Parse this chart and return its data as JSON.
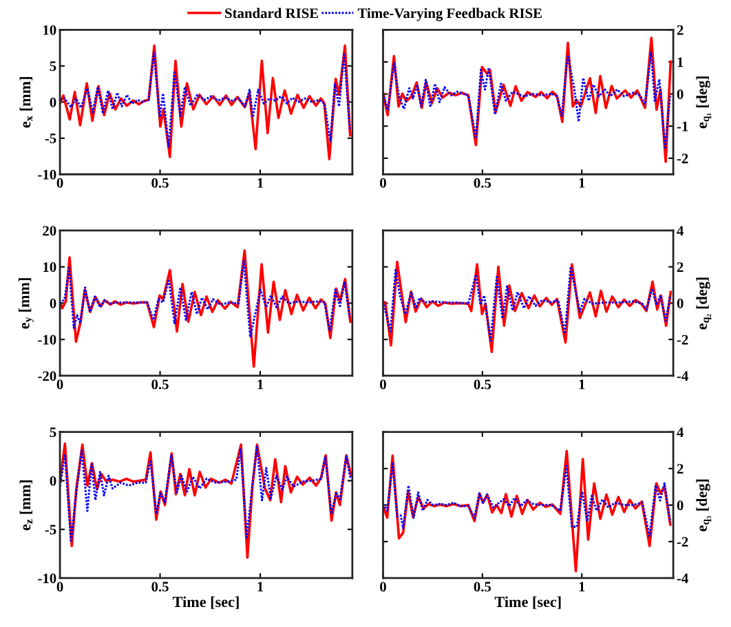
{
  "chart_data": [
    {
      "type": "line",
      "ylabel": "e$_{x}$ [mm]",
      "xlim": [
        0,
        1.46
      ],
      "xticks": [
        0,
        0.5,
        1
      ],
      "ylim": [
        -10,
        10
      ],
      "yticks": [
        -10,
        -5,
        0,
        5,
        10
      ],
      "grid": false,
      "legend": "top",
      "series": [
        {
          "name": "Standard RISE",
          "color": "#ff0000",
          "line_style": "solid",
          "x": [
            0,
            0.017,
            0.049,
            0.074,
            0.101,
            0.134,
            0.162,
            0.192,
            0.221,
            0.248,
            0.277,
            0.305,
            0.334,
            0.366,
            0.394,
            0.423,
            0.443,
            0.471,
            0.501,
            0.517,
            0.549,
            0.577,
            0.606,
            0.634,
            0.666,
            0.697,
            0.731,
            0.766,
            0.798,
            0.829,
            0.857,
            0.886,
            0.923,
            0.946,
            0.977,
            1.008,
            1.037,
            1.063,
            1.091,
            1.122,
            1.154,
            1.186,
            1.217,
            1.246,
            1.278,
            1.303,
            1.32,
            1.345,
            1.377,
            1.394,
            1.423,
            1.449
          ],
          "values": [
            -0.2,
            0.9,
            -2.4,
            1.4,
            -3.2,
            2.6,
            -2.6,
            2.2,
            -1.8,
            1.2,
            -1.0,
            0.5,
            -0.5,
            0.2,
            -0.3,
            0.2,
            0.3,
            7.8,
            -3.4,
            -1.0,
            -7.6,
            5.7,
            -3.4,
            2.6,
            -1.0,
            1.0,
            -0.3,
            0.8,
            -0.4,
            0.9,
            -0.4,
            0.7,
            -0.7,
            1.2,
            -6.5,
            5.7,
            -4.3,
            3.3,
            -2.2,
            1.6,
            -1.6,
            1.0,
            -0.8,
            0.8,
            -0.5,
            0.5,
            -0.2,
            -7.9,
            3.2,
            1.0,
            7.8,
            -4.6
          ]
        },
        {
          "name": "Time-Varying Feedback RISE",
          "color": "#0000ff",
          "line_style": "dotted",
          "x": [
            0,
            0.023,
            0.055,
            0.08,
            0.105,
            0.137,
            0.164,
            0.189,
            0.215,
            0.24,
            0.263,
            0.286,
            0.309,
            0.334,
            0.36,
            0.389,
            0.412,
            0.443,
            0.469,
            0.498,
            0.515,
            0.543,
            0.572,
            0.601,
            0.624,
            0.652,
            0.686,
            0.721,
            0.755,
            0.789,
            0.824,
            0.858,
            0.892,
            0.924,
            0.947,
            0.963,
            0.99,
            1.018,
            1.047,
            1.075,
            1.104,
            1.133,
            1.161,
            1.19,
            1.224,
            1.259,
            1.293,
            1.321,
            1.35,
            1.373,
            1.394,
            1.419,
            1.447
          ],
          "values": [
            0.3,
            0.5,
            -0.7,
            0.5,
            -0.8,
            1.9,
            -1.4,
            2.1,
            -1.6,
            1.6,
            -1.0,
            1.3,
            -0.6,
            1.0,
            -0.2,
            0.3,
            0,
            0.3,
            6.8,
            -2.1,
            1.2,
            -6.3,
            4.3,
            -1.9,
            2.1,
            -0.5,
            1.0,
            0.3,
            0.8,
            0.2,
            0.6,
            0.2,
            0.5,
            -0.6,
            1.7,
            -2.1,
            1.7,
            -0.2,
            0.5,
            0.2,
            0.8,
            -0.2,
            0.6,
            0,
            0.5,
            0,
            0.3,
            -0.2,
            -5.4,
            2.5,
            -0.6,
            6.8,
            -3.7
          ]
        }
      ]
    },
    {
      "type": "line",
      "ylabel": "e$_{q₁}$ [deg]",
      "xlim": [
        0,
        1.46
      ],
      "xticks": [
        0,
        0.5,
        1
      ],
      "ylim": [
        -2.5,
        2
      ],
      "yticks": [
        -2,
        -1,
        0,
        1,
        2
      ],
      "grid": false,
      "series": [
        {
          "color": "#ff0000",
          "line_style": "solid",
          "x": [
            0,
            0.023,
            0.055,
            0.078,
            0.097,
            0.117,
            0.143,
            0.169,
            0.195,
            0.217,
            0.246,
            0.272,
            0.3,
            0.332,
            0.366,
            0.395,
            0.429,
            0.467,
            0.498,
            0.524,
            0.538,
            0.566,
            0.606,
            0.641,
            0.667,
            0.696,
            0.727,
            0.767,
            0.795,
            0.826,
            0.852,
            0.875,
            0.902,
            0.93,
            0.955,
            0.973,
            0.995,
            1.041,
            1.07,
            1.093,
            1.121,
            1.15,
            1.176,
            1.218,
            1.247,
            1.279,
            1.318,
            1.35,
            1.376,
            1.396,
            1.422,
            1.447
          ],
          "values": [
            0.04,
            -0.66,
            1.18,
            -0.39,
            0.01,
            -0.23,
            -0.07,
            0.36,
            -0.43,
            0.37,
            -0.29,
            0.18,
            -0.11,
            0.04,
            -0.04,
            0.04,
            -0.04,
            -1.59,
            0.84,
            0.63,
            0.75,
            -0.57,
            0.29,
            -0.37,
            0.24,
            -0.21,
            0.06,
            -0.09,
            0.06,
            -0.13,
            0.07,
            -0.06,
            -0.87,
            1.59,
            -0.39,
            -0.18,
            -0.39,
            0.49,
            -0.59,
            0.56,
            -0.43,
            0.25,
            -0.14,
            0.11,
            -0.11,
            0.11,
            -0.43,
            1.75,
            -0.49,
            0.14,
            -2.11,
            1.01
          ]
        },
        {
          "color": "#0000ff",
          "line_style": "dotted",
          "x": [
            0,
            0.025,
            0.055,
            0.08,
            0.105,
            0.132,
            0.151,
            0.172,
            0.192,
            0.215,
            0.238,
            0.261,
            0.284,
            0.309,
            0.343,
            0.372,
            0.429,
            0.467,
            0.492,
            0.513,
            0.532,
            0.563,
            0.593,
            0.618,
            0.652,
            0.709,
            0.755,
            0.801,
            0.847,
            0.875,
            0.899,
            0.929,
            0.961,
            0.984,
            1.007,
            1.035,
            1.058,
            1.087,
            1.116,
            1.144,
            1.178,
            1.213,
            1.259,
            1.293,
            1.318,
            1.348,
            1.367,
            1.39,
            1.419,
            1.444
          ],
          "values": [
            0,
            -0.5,
            0.96,
            -0.07,
            -0.46,
            0.18,
            -0.14,
            0.29,
            -0.39,
            0.44,
            -0.41,
            0.32,
            -0.25,
            0.21,
            -0.04,
            0.07,
            -0.04,
            -1.39,
            0.75,
            0.14,
            0.82,
            -0.64,
            0.32,
            -0.21,
            0.07,
            -0.07,
            0,
            -0.04,
            0.01,
            -0.07,
            -0.68,
            1.21,
            0.21,
            -0.86,
            0.5,
            -0.21,
            0.29,
            -0.07,
            0.14,
            -0.07,
            0.14,
            -0.07,
            0.04,
            -0.04,
            -0.32,
            1.29,
            -0.21,
            0.46,
            -1.71,
            -0.04
          ]
        }
      ]
    },
    {
      "type": "line",
      "ylabel": "e$_{y}$ [mm]",
      "xlim": [
        0,
        1.46
      ],
      "xticks": [
        0,
        0.5,
        1
      ],
      "ylim": [
        -20,
        20
      ],
      "yticks": [
        -20,
        -10,
        0,
        10,
        20
      ],
      "grid": false,
      "series": [
        {
          "color": "#ff0000",
          "line_style": "solid",
          "x": [
            0,
            0.011,
            0.029,
            0.048,
            0.08,
            0.103,
            0.124,
            0.151,
            0.177,
            0.204,
            0.223,
            0.252,
            0.275,
            0.303,
            0.332,
            0.366,
            0.4,
            0.435,
            0.469,
            0.498,
            0.515,
            0.549,
            0.584,
            0.612,
            0.641,
            0.673,
            0.704,
            0.732,
            0.761,
            0.789,
            0.824,
            0.852,
            0.887,
            0.922,
            0.968,
            1.007,
            1.039,
            1.067,
            1.098,
            1.125,
            1.156,
            1.184,
            1.215,
            1.245,
            1.276,
            1.304,
            1.325,
            1.35,
            1.379,
            1.398,
            1.424,
            1.45
          ],
          "values": [
            0.2,
            -1.4,
            0.5,
            12.6,
            -10.6,
            -5.2,
            3.7,
            -2.4,
            1.7,
            -0.9,
            0.8,
            -0.4,
            0.5,
            -0.4,
            0.2,
            -0.1,
            0.2,
            0.2,
            -6.6,
            2.1,
            1.1,
            9.1,
            -7.8,
            5.3,
            -5.1,
            3.1,
            -3.3,
            1.8,
            -2.4,
            0.8,
            -1.5,
            0.4,
            -1.1,
            14.5,
            -17.5,
            10.7,
            -8.1,
            5.9,
            -4.6,
            3.6,
            -3.0,
            2.3,
            -2.0,
            1.5,
            -1.4,
            1.0,
            -0.1,
            -9.6,
            4.0,
            0.5,
            6.6,
            -5.1
          ]
        },
        {
          "color": "#0000ff",
          "line_style": "dotted",
          "x": [
            0,
            0.023,
            0.046,
            0.069,
            0.086,
            0.101,
            0.126,
            0.149,
            0.174,
            0.2,
            0.223,
            0.252,
            0.286,
            0.343,
            0.435,
            0.467,
            0.492,
            0.515,
            0.543,
            0.572,
            0.601,
            0.629,
            0.658,
            0.684,
            0.709,
            0.738,
            0.764,
            0.801,
            0.847,
            0.892,
            0.918,
            0.95,
            1.001,
            1.03,
            1.053,
            1.081,
            1.11,
            1.144,
            1.19,
            1.236,
            1.293,
            1.321,
            1.347,
            1.375,
            1.398,
            1.421,
            1.447
          ],
          "values": [
            -0.1,
            1.1,
            9.7,
            -6.8,
            -3.3,
            -5.5,
            4.3,
            -2.4,
            1.8,
            -1.1,
            0.8,
            -0.1,
            0.2,
            0.2,
            0.2,
            -4.6,
            1.1,
            0.2,
            6.6,
            -5.5,
            4.3,
            -4.6,
            3.1,
            -3.0,
            1.5,
            -1.7,
            1.1,
            -0.4,
            0.2,
            -0.1,
            11.7,
            -9.4,
            3.7,
            -1.1,
            2.1,
            -1.1,
            1.8,
            -0.1,
            0.5,
            0.2,
            0.5,
            0.2,
            -7.5,
            3.7,
            -0.8,
            5.9,
            -3.9
          ]
        }
      ]
    },
    {
      "type": "line",
      "ylabel": "e$_{q₂}$ [deg]",
      "xlim": [
        0,
        1.46
      ],
      "xticks": [
        0,
        0.5,
        1
      ],
      "ylim": [
        -4,
        4
      ],
      "yticks": [
        -4,
        -2,
        0,
        2,
        4
      ],
      "grid": false,
      "series": [
        {
          "color": "#ff0000",
          "line_style": "solid",
          "x": [
            0,
            0.011,
            0.04,
            0.071,
            0.114,
            0.141,
            0.164,
            0.192,
            0.22,
            0.249,
            0.277,
            0.309,
            0.343,
            0.389,
            0.429,
            0.444,
            0.473,
            0.498,
            0.515,
            0.547,
            0.58,
            0.609,
            0.635,
            0.664,
            0.698,
            0.732,
            0.761,
            0.789,
            0.821,
            0.849,
            0.875,
            0.918,
            0.95,
            0.99,
            1.041,
            1.07,
            1.096,
            1.124,
            1.153,
            1.184,
            1.213,
            1.241,
            1.27,
            1.299,
            1.325,
            1.356,
            1.379,
            1.398,
            1.424,
            1.447
          ],
          "values": [
            0.04,
            0.04,
            -2.32,
            2.27,
            -1.04,
            0.64,
            -0.47,
            0.25,
            -0.22,
            0.1,
            -0.15,
            0.04,
            -0.03,
            0,
            -0.03,
            -0.43,
            2.14,
            -0.6,
            -0.03,
            -2.68,
            2.01,
            -1.24,
            0.97,
            -0.43,
            0.55,
            -0.28,
            0.42,
            -0.18,
            0.29,
            -0.09,
            0.23,
            -2.17,
            2.14,
            -0.82,
            0.59,
            -0.73,
            0.68,
            -0.47,
            0.36,
            -0.22,
            0.19,
            -0.15,
            0.17,
            -0.03,
            -0.43,
            1.18,
            -0.34,
            0.42,
            -1.24,
            0.61
          ]
        },
        {
          "color": "#0000ff",
          "line_style": "dotted",
          "x": [
            0,
            0.037,
            0.063,
            0.086,
            0.112,
            0.143,
            0.166,
            0.183,
            0.212,
            0.252,
            0.309,
            0.366,
            0.429,
            0.467,
            0.49,
            0.509,
            0.541,
            0.572,
            0.601,
            0.624,
            0.652,
            0.677,
            0.709,
            0.735,
            0.767,
            0.801,
            0.847,
            0.881,
            0.915,
            0.944,
            0.99,
            1.013,
            1.053,
            1.121,
            1.19,
            1.259,
            1.304,
            1.325,
            1.354,
            1.375,
            1.396,
            1.422,
            1.444
          ],
          "values": [
            0.1,
            -1.55,
            1.82,
            0.36,
            -0.6,
            0.61,
            -0.28,
            0.29,
            0.04,
            0.1,
            0.04,
            0.04,
            -0.03,
            1.57,
            -0.09,
            0.42,
            -2.06,
            1.44,
            -0.85,
            0.93,
            -0.41,
            0.61,
            -0.28,
            0.38,
            -0.15,
            0.17,
            0.04,
            0.17,
            -1.68,
            2.01,
            -0.47,
            0.23,
            -0.03,
            0.04,
            0.04,
            0.1,
            -0.03,
            -0.34,
            0.8,
            -0.09,
            0.42,
            -0.98,
            0.36
          ]
        }
      ]
    },
    {
      "type": "line",
      "ylabel": "e$_{z}$ [mm]",
      "xlabel": "Time [sec]",
      "xlim": [
        0,
        1.46
      ],
      "xticks": [
        0,
        0.5,
        1
      ],
      "ylim": [
        -10,
        5
      ],
      "yticks": [
        -10,
        -5,
        0,
        5
      ],
      "grid": false,
      "series": [
        {
          "color": "#ff0000",
          "line_style": "solid",
          "x": [
            0,
            0.025,
            0.059,
            0.082,
            0.112,
            0.137,
            0.16,
            0.185,
            0.206,
            0.229,
            0.263,
            0.297,
            0.332,
            0.366,
            0.429,
            0.452,
            0.481,
            0.503,
            0.524,
            0.558,
            0.579,
            0.601,
            0.624,
            0.646,
            0.673,
            0.698,
            0.727,
            0.755,
            0.795,
            0.826,
            0.856,
            0.904,
            0.936,
            0.961,
            0.984,
            1.024,
            1.05,
            1.075,
            1.104,
            1.125,
            1.153,
            1.184,
            1.213,
            1.247,
            1.279,
            1.304,
            1.327,
            1.356,
            1.379,
            1.398,
            1.43,
            1.453
          ],
          "values": [
            -0.1,
            3.8,
            -6.7,
            -0.8,
            3.7,
            -0.5,
            1.8,
            -0.9,
            0.7,
            0,
            0.1,
            -0.1,
            0.2,
            -0.1,
            0.1,
            2.9,
            -4.0,
            -1.1,
            -2.5,
            2.8,
            -1.4,
            0.7,
            -1.5,
            1.2,
            -1.5,
            0.9,
            -0.7,
            0.2,
            -0.2,
            0.1,
            -0.3,
            3.7,
            -7.9,
            -0.6,
            3.7,
            -0.8,
            -2.0,
            2.2,
            -2.2,
            1.5,
            -1.2,
            0.4,
            -0.4,
            0.3,
            -0.5,
            0.3,
            2.6,
            -4.1,
            -1.2,
            -2.5,
            2.6,
            0.6
          ]
        },
        {
          "color": "#0000ff",
          "line_style": "dotted",
          "x": [
            0,
            0.025,
            0.055,
            0.08,
            0.109,
            0.137,
            0.158,
            0.177,
            0.2,
            0.22,
            0.243,
            0.263,
            0.303,
            0.343,
            0.389,
            0.429,
            0.452,
            0.481,
            0.501,
            0.524,
            0.556,
            0.584,
            0.606,
            0.635,
            0.664,
            0.698,
            0.732,
            0.778,
            0.835,
            0.881,
            0.902,
            0.933,
            0.961,
            0.984,
            1.009,
            1.03,
            1.053,
            1.081,
            1.11,
            1.133,
            1.167,
            1.213,
            1.259,
            1.304,
            1.325,
            1.356,
            1.379,
            1.398,
            1.43,
            1.451
          ],
          "values": [
            -0.6,
            2.7,
            -6.3,
            -1.5,
            3.1,
            -3.1,
            1.7,
            -2.0,
            0.9,
            -1.5,
            0.5,
            -0.8,
            -0.2,
            -0.5,
            -0.2,
            -0.2,
            2.1,
            -3.4,
            -1.3,
            -2.2,
            2.6,
            -1.2,
            0.5,
            -1.1,
            0.4,
            -0.8,
            0.2,
            -0.2,
            -0.1,
            0.1,
            3.3,
            -5.8,
            -0.4,
            3.5,
            -2.0,
            1.3,
            -1.8,
            0.5,
            -0.9,
            0.4,
            -0.6,
            -0.1,
            0,
            0.2,
            2.4,
            -3.4,
            -1.3,
            -1.9,
            2.5,
            0.2
          ]
        }
      ]
    },
    {
      "type": "line",
      "ylabel": "e$_{q₃}$ [deg]",
      "xlabel": "Time [sec]",
      "xlim": [
        0,
        1.46
      ],
      "xticks": [
        0,
        0.5,
        1
      ],
      "ylim": [
        -4,
        4
      ],
      "yticks": [
        -4,
        -2,
        0,
        2,
        4
      ],
      "grid": false,
      "series": [
        {
          "color": "#ff0000",
          "line_style": "solid",
          "x": [
            0,
            0.021,
            0.048,
            0.08,
            0.101,
            0.126,
            0.151,
            0.177,
            0.204,
            0.229,
            0.257,
            0.286,
            0.32,
            0.355,
            0.389,
            0.429,
            0.46,
            0.486,
            0.503,
            0.524,
            0.549,
            0.572,
            0.595,
            0.618,
            0.646,
            0.673,
            0.7,
            0.727,
            0.755,
            0.789,
            0.818,
            0.852,
            0.892,
            0.924,
            0.97,
            1.005,
            1.032,
            1.062,
            1.093,
            1.124,
            1.153,
            1.184,
            1.213,
            1.241,
            1.27,
            1.302,
            1.341,
            1.375,
            1.396,
            1.416,
            1.445
          ],
          "values": [
            -0.06,
            -0.69,
            2.7,
            -1.82,
            -1.51,
            0.75,
            -0.65,
            0.44,
            -0.19,
            0.06,
            -0.06,
            0.03,
            -0.06,
            0.06,
            -0.06,
            0,
            -0.88,
            0.63,
            0.13,
            0.57,
            -0.4,
            0,
            -0.44,
            0.6,
            -0.63,
            0.5,
            -0.48,
            0.28,
            -0.25,
            0.13,
            -0.1,
            0.03,
            -0.48,
            2.96,
            -3.62,
            2.52,
            -1.89,
            1.19,
            -0.75,
            0.57,
            -0.53,
            0.44,
            -0.38,
            0.28,
            -0.19,
            0.19,
            -2.24,
            1.19,
            0.63,
            1.03,
            -1.07
          ]
        },
        {
          "color": "#0000ff",
          "line_style": "dotted",
          "x": [
            0,
            0.021,
            0.048,
            0.071,
            0.089,
            0.101,
            0.128,
            0.154,
            0.177,
            0.2,
            0.223,
            0.252,
            0.286,
            0.32,
            0.355,
            0.389,
            0.429,
            0.46,
            0.484,
            0.503,
            0.524,
            0.555,
            0.584,
            0.606,
            0.635,
            0.661,
            0.692,
            0.721,
            0.755,
            0.801,
            0.847,
            0.892,
            0.922,
            0.95,
            0.975,
            1.001,
            1.027,
            1.05,
            1.075,
            1.104,
            1.133,
            1.167,
            1.213,
            1.259,
            1.304,
            1.341,
            1.371,
            1.394,
            1.416,
            1.445
          ],
          "values": [
            0.06,
            -0.31,
            2.26,
            -0.63,
            -0.57,
            -1.26,
            1.07,
            -0.69,
            0.69,
            -0.31,
            0.28,
            0,
            0.06,
            0,
            0.13,
            -0.06,
            -0.06,
            -0.69,
            0.63,
            0.13,
            0.57,
            -0.13,
            0.13,
            0.31,
            -0.06,
            0.38,
            -0.06,
            0.25,
            0.06,
            0,
            0,
            -0.31,
            2.14,
            -1.19,
            -1.19,
            0.75,
            -0.88,
            0.5,
            -0.31,
            0.31,
            -0.13,
            0.13,
            0,
            0,
            0.13,
            -1.7,
            1.07,
            0.25,
            1.19,
            -0.94
          ]
        }
      ]
    }
  ]
}
